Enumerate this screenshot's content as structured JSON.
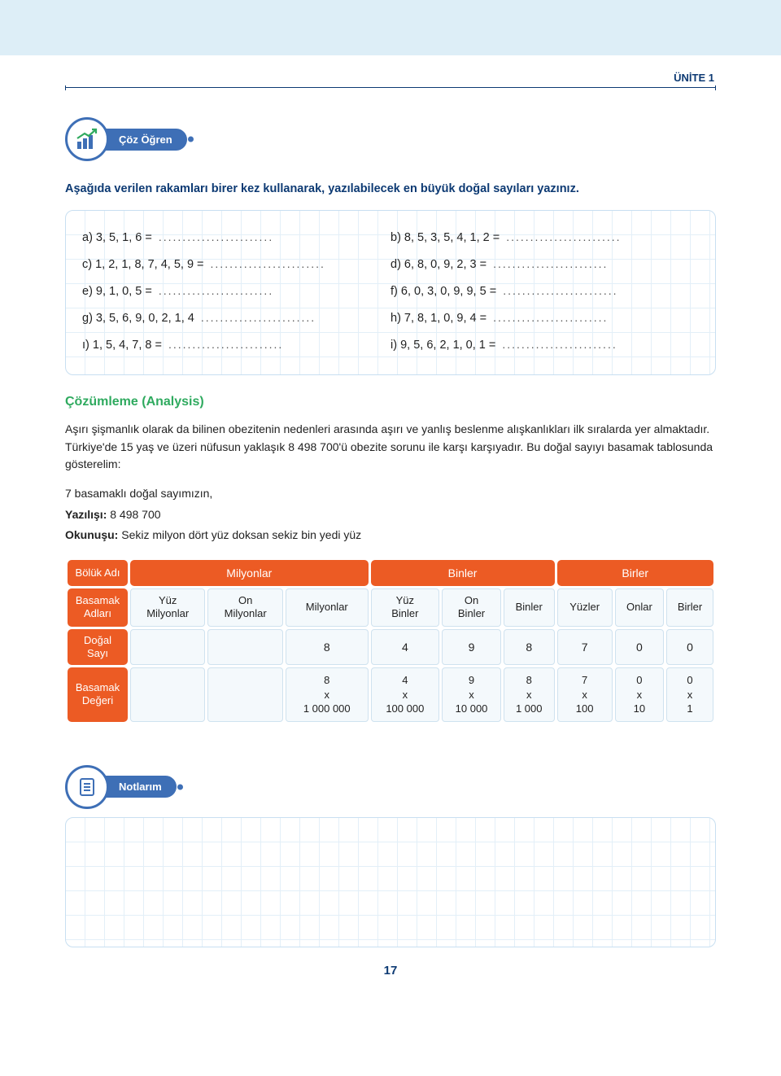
{
  "colors": {
    "brand_blue": "#3e6fb6",
    "dark_blue": "#0d3a73",
    "orange": "#ec5b24",
    "green": "#2faa5f",
    "grid_line": "#e3eff8",
    "cell_bg": "#f4f9fc",
    "cell_border": "#cfe2ef",
    "topband": "#ddeef7"
  },
  "header": {
    "unit_label": "ÜNİTE 1"
  },
  "badge1": {
    "label": "Çöz Öğren"
  },
  "instruction": "Aşağıda verilen rakamları birer kez kullanarak, yazılabilecek en büyük doğal sayıları yazınız.",
  "questions": [
    {
      "left": "a) 3, 5, 1, 6 =",
      "right": "b) 8, 5, 3, 5, 4, 1, 2 ="
    },
    {
      "left": "c) 1, 2, 1, 8, 7, 4, 5, 9 =",
      "right": "d) 6, 8, 0, 9, 2, 3 ="
    },
    {
      "left": "e) 9, 1, 0, 5 =",
      "right": "f) 6, 0, 3, 0, 9, 9, 5 ="
    },
    {
      "left": "g) 3, 5, 6, 9, 0, 2, 1, 4",
      "right": "h) 7, 8, 1, 0, 9, 4 ="
    },
    {
      "left": "ı) 1, 5, 4, 7, 8 =",
      "right": "i) 9, 5, 6, 2, 1, 0, 1 ="
    }
  ],
  "analysis": {
    "title": "Çözümleme (Analysis)",
    "para1": "Aşırı şişmanlık olarak da  bilinen obezitenin nedenleri arasında aşırı ve yanlış beslenme alışkanlıkları ilk sıralarda yer almaktadır.",
    "para2": "Türkiye'de 15 yaş ve üzeri nüfusun yaklaşık 8 498 700'ü obezite sorunu ile karşı karşıyadır. Bu doğal sayıyı basamak tablosunda gösterelim:",
    "line_count": "7 basamaklı doğal sayımızın,",
    "yazilis_label": "Yazılışı:",
    "yazilis_value": " 8 498 700",
    "okunus_label": "Okunuşu:",
    "okunus_value": " Sekiz milyon dört yüz doksan sekiz bin yedi yüz"
  },
  "place_table": {
    "row_labels": {
      "group": "Bölük Adı",
      "columns": "Basamak Adları",
      "digits": "Doğal Sayı",
      "values": "Basamak Değeri"
    },
    "groups": [
      "Milyonlar",
      "Binler",
      "Birler"
    ],
    "columns": [
      "Yüz Milyonlar",
      "On Milyonlar",
      "Milyonlar",
      "Yüz Binler",
      "On Binler",
      "Binler",
      "Yüzler",
      "Onlar",
      "Birler"
    ],
    "digits": [
      "",
      "",
      "8",
      "4",
      "9",
      "8",
      "7",
      "0",
      "0"
    ],
    "multipliers": [
      "",
      "",
      "1 000 000",
      "100 000",
      "10 000",
      "1 000",
      "100",
      "10",
      "1"
    ],
    "mult_digits": [
      "",
      "",
      "8",
      "4",
      "9",
      "8",
      "7",
      "0",
      "0"
    ]
  },
  "badge2": {
    "label": "Notlarım"
  },
  "page_number": "17",
  "dots_fill": "............................."
}
